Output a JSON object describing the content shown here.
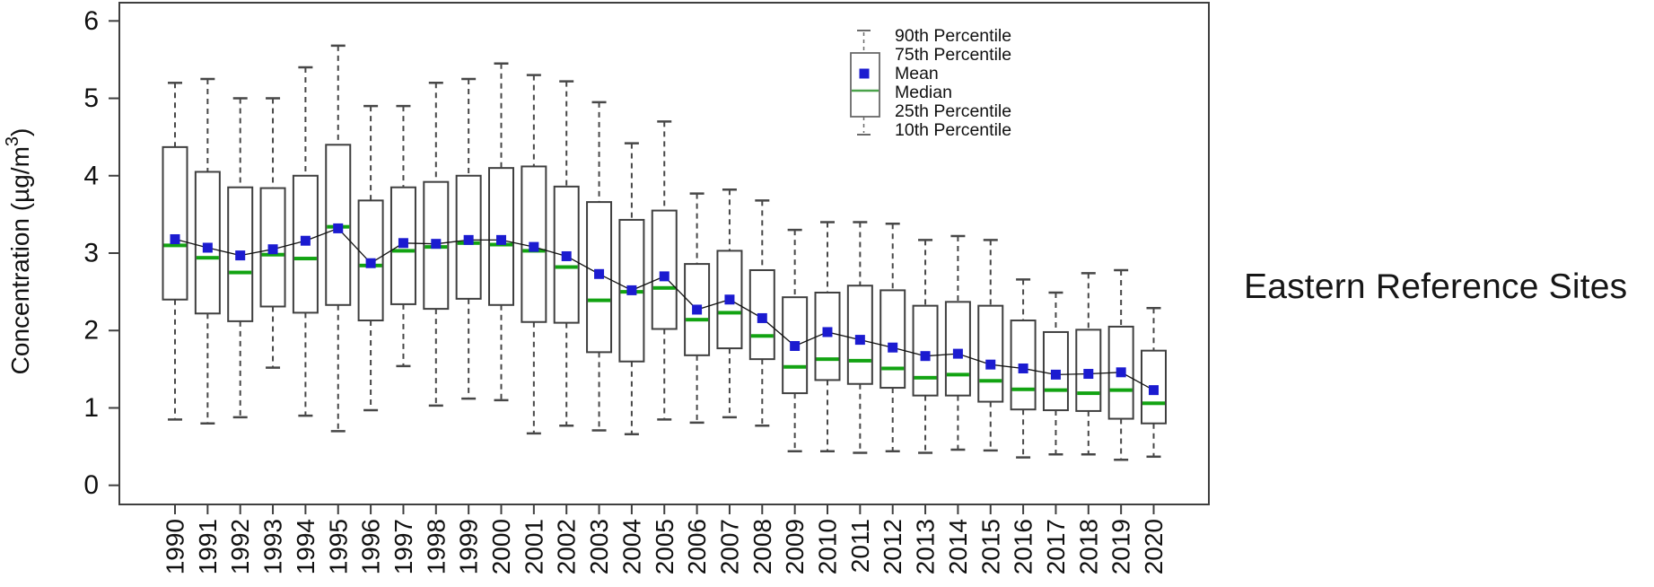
{
  "page": {
    "title_right": "Eastern Reference Sites"
  },
  "legend": {
    "items": [
      "90th Percentile",
      "75th Percentile",
      "Mean",
      "Median",
      "25th Percentile",
      "10th Percentile"
    ]
  },
  "axes": {
    "ylabel_prefix": "Concentration (µg/m",
    "ylabel_sup": "3",
    "ylabel_suffix": ")",
    "y_ticks": [
      "0",
      "1",
      "2",
      "3",
      "4",
      "5",
      "6"
    ]
  },
  "colors": {
    "axis": "#3f3f3f",
    "box_border": "#3f3f3f",
    "whisker": "#474747",
    "median": "#12a312",
    "legend_median": "#4aa34a",
    "mean_marker": "#1b1bd0",
    "mean_line": "#111111",
    "text": "#111111"
  },
  "chart_data": {
    "type": "boxplot",
    "title": "Eastern Reference Sites",
    "ylabel": "Concentration (µg/m³)",
    "ylim": [
      0,
      6.25
    ],
    "grid": false,
    "legend_position": "top-right-inside",
    "categories": [
      "1990",
      "1991",
      "1992",
      "1993",
      "1994",
      "1995",
      "1996",
      "1997",
      "1998",
      "1999",
      "2000",
      "2001",
      "2002",
      "2003",
      "2004",
      "2005",
      "2006",
      "2007",
      "2008",
      "2009",
      "2010",
      "2011",
      "2012",
      "2013",
      "2014",
      "2015",
      "2016",
      "2017",
      "2018",
      "2019",
      "2020"
    ],
    "series": [
      {
        "name": "90th Percentile",
        "values": [
          5.2,
          5.25,
          5.0,
          5.0,
          5.4,
          5.68,
          4.9,
          4.9,
          5.2,
          5.25,
          5.45,
          5.3,
          5.22,
          4.95,
          4.42,
          4.7,
          3.77,
          3.82,
          3.68,
          3.3,
          3.4,
          3.4,
          3.38,
          3.17,
          3.22,
          3.17,
          2.66,
          2.49,
          2.74,
          2.78,
          2.29
        ]
      },
      {
        "name": "75th Percentile",
        "values": [
          4.37,
          4.05,
          3.85,
          3.84,
          4.0,
          4.4,
          3.68,
          3.85,
          3.92,
          4.0,
          4.1,
          4.12,
          3.86,
          3.66,
          3.43,
          3.55,
          2.86,
          3.03,
          2.78,
          2.43,
          2.49,
          2.58,
          2.52,
          2.32,
          2.37,
          2.32,
          2.13,
          1.98,
          2.01,
          2.05,
          1.74
        ]
      },
      {
        "name": "Mean",
        "values": [
          3.18,
          3.07,
          2.97,
          3.05,
          3.16,
          3.32,
          2.87,
          3.13,
          3.12,
          3.17,
          3.17,
          3.08,
          2.96,
          2.73,
          2.52,
          2.7,
          2.27,
          2.4,
          2.16,
          1.8,
          1.98,
          1.88,
          1.78,
          1.67,
          1.7,
          1.56,
          1.51,
          1.43,
          1.44,
          1.46,
          1.23
        ]
      },
      {
        "name": "Median",
        "values": [
          3.1,
          2.94,
          2.75,
          2.98,
          2.93,
          3.34,
          2.84,
          3.03,
          3.08,
          3.13,
          3.11,
          3.03,
          2.82,
          2.39,
          2.5,
          2.55,
          2.14,
          2.23,
          1.93,
          1.53,
          1.63,
          1.61,
          1.51,
          1.39,
          1.43,
          1.35,
          1.24,
          1.23,
          1.19,
          1.23,
          1.06
        ]
      },
      {
        "name": "25th Percentile",
        "values": [
          2.4,
          2.22,
          2.12,
          2.31,
          2.23,
          2.33,
          2.13,
          2.34,
          2.28,
          2.41,
          2.33,
          2.11,
          2.1,
          1.72,
          1.6,
          2.02,
          1.68,
          1.77,
          1.63,
          1.19,
          1.36,
          1.31,
          1.26,
          1.16,
          1.16,
          1.08,
          0.98,
          0.97,
          0.96,
          0.86,
          0.8
        ]
      },
      {
        "name": "10th Percentile",
        "values": [
          0.85,
          0.8,
          0.88,
          1.52,
          0.9,
          0.7,
          0.97,
          1.54,
          1.03,
          1.12,
          1.1,
          0.67,
          0.77,
          0.71,
          0.66,
          0.85,
          0.81,
          0.88,
          0.77,
          0.44,
          0.44,
          0.42,
          0.44,
          0.42,
          0.46,
          0.45,
          0.36,
          0.4,
          0.4,
          0.33,
          0.37
        ]
      }
    ]
  }
}
